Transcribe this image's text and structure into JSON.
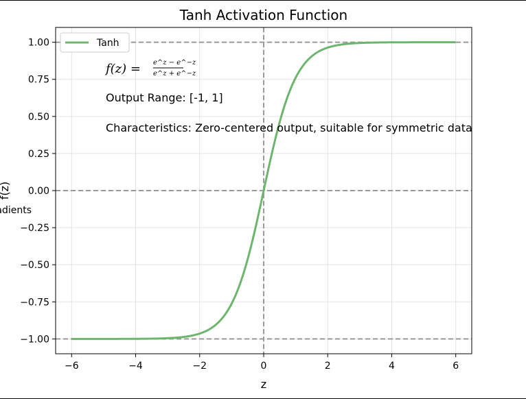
{
  "chart_data": {
    "type": "line",
    "title": "Tanh Activation Function",
    "xlabel": "z",
    "ylabel_visible": [
      "f(z)",
      "Gradients"
    ],
    "xlim": [
      -6.5,
      6.5
    ],
    "ylim": [
      -1.1,
      1.1
    ],
    "xticks": [
      -6,
      -4,
      -2,
      0,
      2,
      4,
      6
    ],
    "xtick_labels": [
      "−6",
      "−4",
      "−2",
      "0",
      "2",
      "4",
      "6"
    ],
    "yticks": [
      1.0,
      0.75,
      0.5,
      0.25,
      0.0,
      -0.25,
      -0.5,
      -0.75,
      -1.0
    ],
    "ytick_labels": [
      "1.00",
      "0.75",
      "0.50",
      "0.25",
      "0.00",
      "−0.25",
      "−0.50",
      "−0.75",
      "−1.00"
    ],
    "grid": true,
    "legend_position": "top-left",
    "series": [
      {
        "name": "Tanh",
        "color": "#6db56d",
        "function": "tanh",
        "x": [
          -6,
          -5,
          -4,
          -3,
          -2.5,
          -2,
          -1.5,
          -1,
          -0.5,
          0,
          0.5,
          1,
          1.5,
          2,
          2.5,
          3,
          4,
          5,
          6
        ],
        "y": [
          -1.0,
          -0.9999,
          -0.9993,
          -0.9951,
          -0.9866,
          -0.964,
          -0.9051,
          -0.7616,
          -0.4621,
          0.0,
          0.4621,
          0.7616,
          0.9051,
          0.964,
          0.9866,
          0.9951,
          0.9993,
          0.9999,
          1.0
        ]
      }
    ],
    "reference_lines": {
      "horizontal": [
        1.0,
        0.0,
        -1.0
      ],
      "vertical": [
        0.0
      ],
      "style": "dashed",
      "color": "#999999"
    },
    "annotations": {
      "formula_lhs": "f(z) =",
      "formula_numerator": "e^z − e^−z",
      "formula_denominator": "e^z + e^−z",
      "output_range": "Output Range: [-1, 1]",
      "characteristics": "Characteristics: Zero-centered output, suitable for symmetric data"
    }
  }
}
